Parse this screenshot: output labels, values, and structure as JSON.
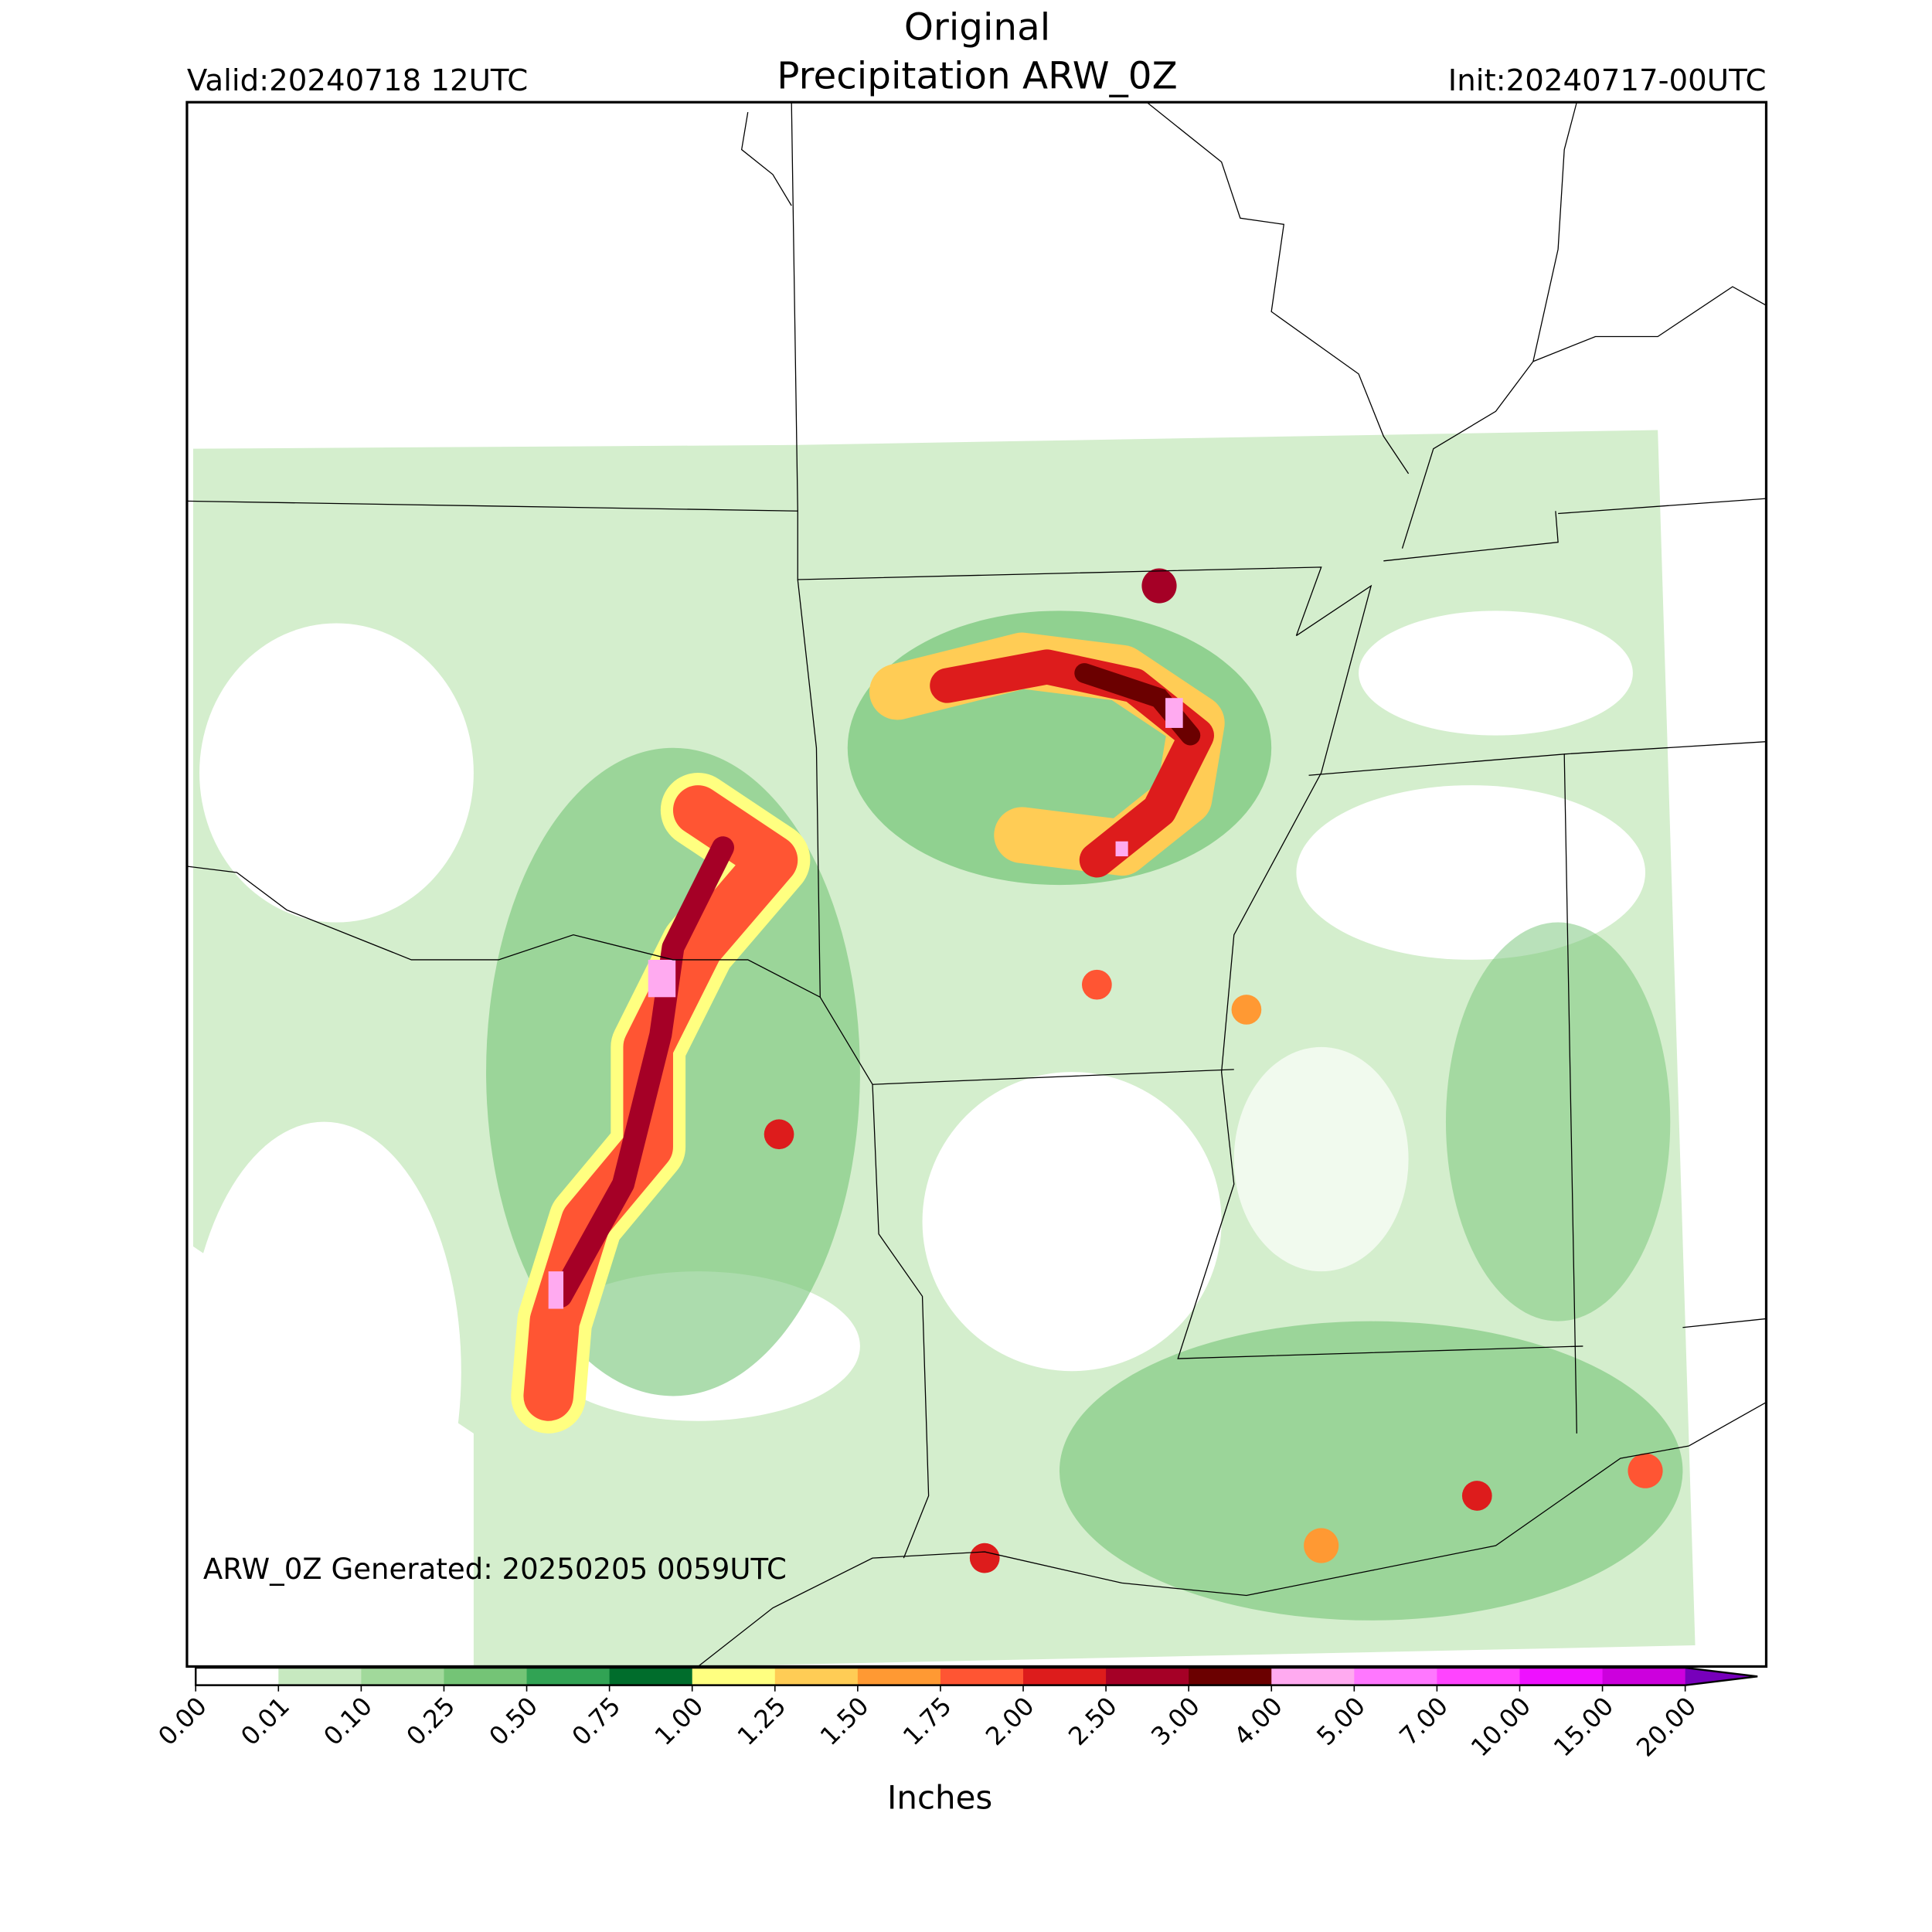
{
  "header": {
    "title": "Original",
    "subtitle": "Precipitation ARW_0Z",
    "valid": "Valid:20240718 12UTC",
    "init": "Init:20240717-00UTC"
  },
  "annotation": "ARW_0Z Generated: 20250205 0059UTC",
  "colorbar": {
    "label": "Inches",
    "ticks": [
      "0.00",
      "0.01",
      "0.10",
      "0.25",
      "0.50",
      "0.75",
      "1.00",
      "1.25",
      "1.50",
      "1.75",
      "2.00",
      "2.50",
      "3.00",
      "4.00",
      "5.00",
      "7.00",
      "10.00",
      "15.00",
      "20.00"
    ],
    "colors": [
      "#ffffff",
      "#c7e9c0",
      "#a1d99b",
      "#74c476",
      "#31a354",
      "#006d2c",
      "#ffff80",
      "#ffcc55",
      "#ff9933",
      "#ff5533",
      "#dd1c1c",
      "#a50026",
      "#6b0000",
      "#ffaaf0",
      "#ff77ff",
      "#ff44ff",
      "#ee11ff",
      "#cc00dd"
    ],
    "extend_color": "#7700bb"
  }
}
